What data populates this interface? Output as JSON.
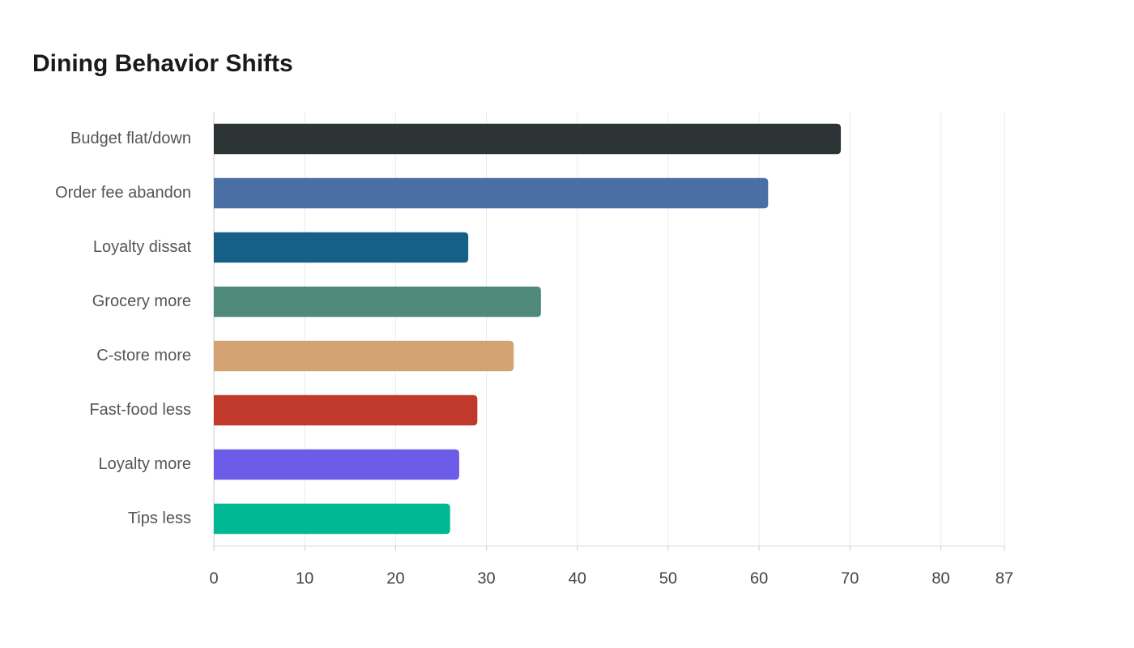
{
  "chart_data": {
    "type": "bar",
    "orientation": "horizontal",
    "title": "Dining Behavior Shifts",
    "categories": [
      "Budget flat/down",
      "Order fee abandon",
      "Loyalty dissat",
      "Grocery more",
      "C-store more",
      "Fast-food less",
      "Loyalty more",
      "Tips less"
    ],
    "values": [
      69,
      61,
      28,
      36,
      33,
      29,
      27,
      26
    ],
    "colors": [
      "#2d3436",
      "#4a6fa5",
      "#166088",
      "#4f8a7a",
      "#d4a373",
      "#c0392b",
      "#6c5ce7",
      "#00b894"
    ],
    "xlim": [
      0,
      87
    ],
    "xticks": [
      0,
      10,
      20,
      30,
      40,
      50,
      60,
      70,
      80,
      87
    ],
    "grid": true
  }
}
